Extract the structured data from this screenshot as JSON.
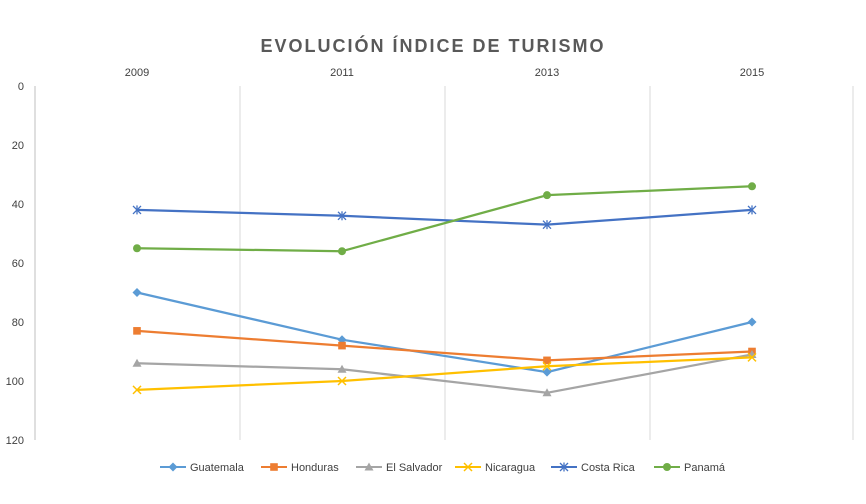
{
  "chart_data": {
    "type": "line",
    "title": "EVOLUCIÓN ÍNDICE DE TURISMO",
    "xlabel": "",
    "ylabel": "",
    "categories": [
      "2009",
      "2011",
      "2013",
      "2015"
    ],
    "y_axis": {
      "min": 0,
      "max": 120,
      "ticks": [
        0,
        20,
        40,
        60,
        80,
        100,
        120
      ],
      "reversed": true
    },
    "x_axis_position": "top",
    "grid": "vertical",
    "legend_position": "bottom",
    "series": [
      {
        "name": "Guatemala",
        "values": [
          70,
          86,
          97,
          80
        ],
        "color": "#5B9BD5",
        "marker": "diamond"
      },
      {
        "name": "Honduras",
        "values": [
          83,
          88,
          93,
          90
        ],
        "color": "#ED7D31",
        "marker": "square"
      },
      {
        "name": "El Salvador",
        "values": [
          94,
          96,
          104,
          91
        ],
        "color": "#A5A5A5",
        "marker": "triangle"
      },
      {
        "name": "Nicaragua",
        "values": [
          103,
          100,
          95,
          92
        ],
        "color": "#FFC000",
        "marker": "x"
      },
      {
        "name": "Costa Rica",
        "values": [
          42,
          44,
          47,
          42
        ],
        "color": "#4472C4",
        "marker": "star"
      },
      {
        "name": "Panamá",
        "values": [
          55,
          56,
          37,
          34
        ],
        "color": "#70AD47",
        "marker": "circle"
      }
    ]
  }
}
